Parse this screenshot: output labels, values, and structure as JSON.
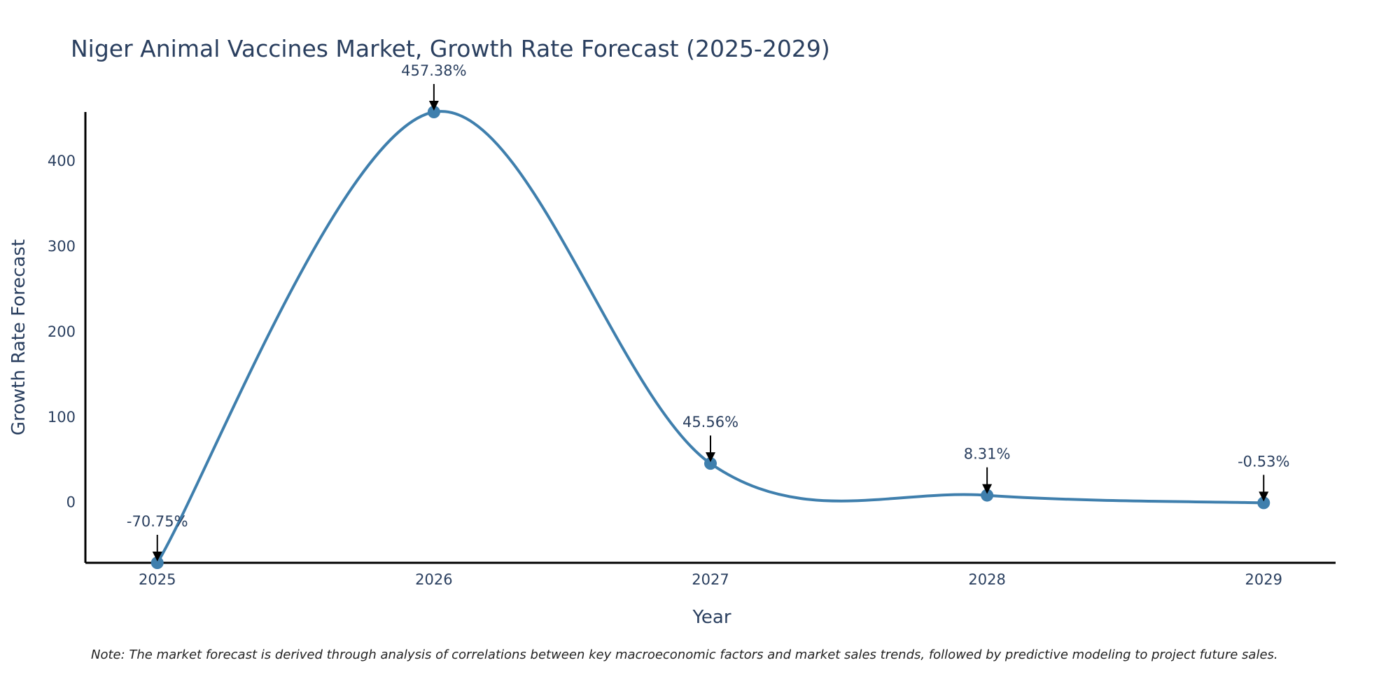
{
  "chart_data": {
    "type": "line",
    "title": "Niger Animal Vaccines Market, Growth Rate Forecast (2025-2029)",
    "xlabel": "Year",
    "ylabel": "Growth Rate Forecast",
    "categories": [
      "2025",
      "2026",
      "2027",
      "2028",
      "2029"
    ],
    "values": [
      -70.75,
      457.38,
      45.56,
      8.31,
      -0.53
    ],
    "annotations": [
      "-70.75%",
      "457.38%",
      "45.56%",
      "8.31%",
      "-0.53%"
    ],
    "ylim": [
      -70.75,
      457.38
    ],
    "yticks": [
      0,
      100,
      200,
      300,
      400
    ],
    "xrange": [
      2024.74,
      2029.26
    ],
    "line_shape": "spline",
    "grid": false,
    "legend": "none",
    "colors": {
      "line": "#3f7fad",
      "axis": "#000000",
      "arrow": "#000000"
    }
  },
  "note": "Note: The market forecast is derived through analysis of correlations between key macroeconomic factors and market sales trends, followed by predictive modeling to project future sales."
}
